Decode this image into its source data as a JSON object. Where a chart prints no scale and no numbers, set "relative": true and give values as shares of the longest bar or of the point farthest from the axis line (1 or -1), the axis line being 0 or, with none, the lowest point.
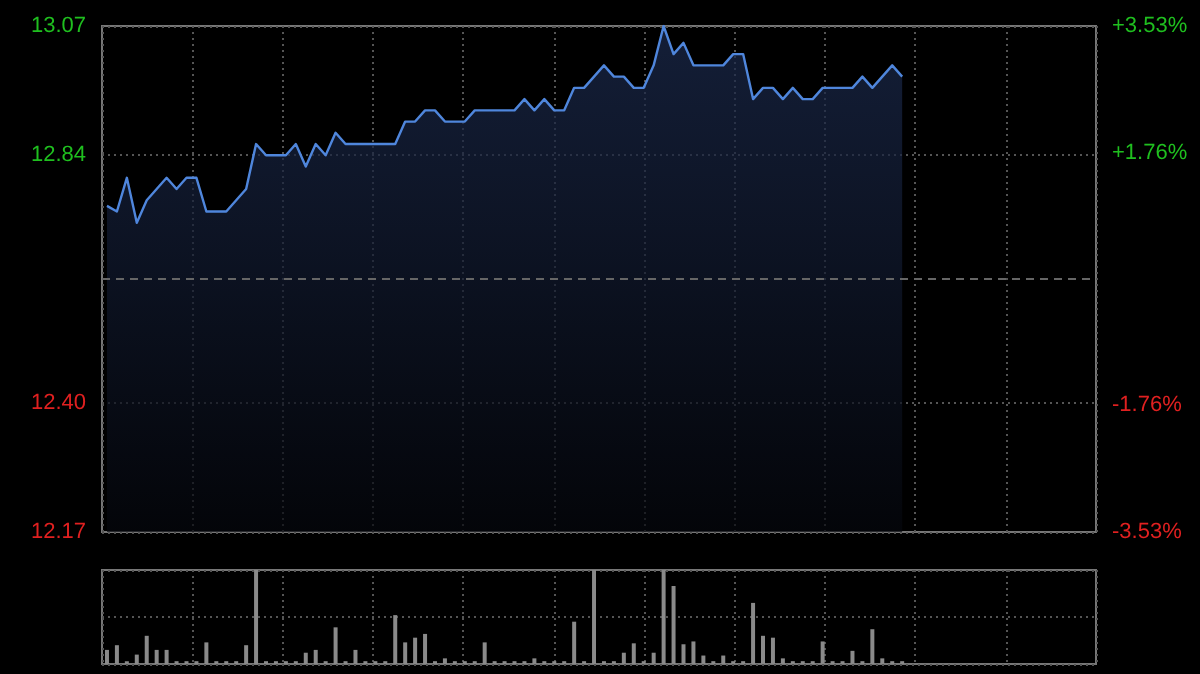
{
  "chart_data": [
    {
      "type": "area",
      "categories": [
        null,
        null,
        null,
        null,
        null,
        null,
        null,
        null,
        null,
        null,
        null,
        null,
        null,
        null,
        null,
        null,
        null,
        null,
        null,
        null,
        null,
        null,
        null,
        null,
        null,
        null,
        null,
        null,
        null,
        null,
        null,
        null,
        null,
        null,
        null,
        null,
        null,
        null,
        null,
        null,
        null,
        null,
        null,
        null,
        null,
        null,
        null,
        null,
        null,
        null,
        null,
        null,
        null,
        null,
        null,
        null,
        null,
        null,
        null,
        null,
        null,
        null,
        null,
        null,
        null,
        null,
        null,
        null,
        null,
        null,
        null,
        null,
        null,
        null,
        null,
        null,
        null,
        null,
        null,
        null,
        null
      ],
      "series": [
        {
          "color": "#4f86dc",
          "values": [
            12.75,
            12.74,
            12.8,
            12.72,
            12.76,
            12.78,
            12.8,
            12.78,
            12.8,
            12.8,
            12.74,
            12.74,
            12.74,
            12.76,
            12.78,
            12.86,
            12.84,
            12.84,
            12.84,
            12.86,
            12.82,
            12.86,
            12.84,
            12.88,
            12.86,
            12.86,
            12.86,
            12.86,
            12.86,
            12.86,
            12.9,
            12.9,
            12.92,
            12.92,
            12.9,
            12.9,
            12.9,
            12.92,
            12.92,
            12.92,
            12.92,
            12.92,
            12.94,
            12.92,
            12.94,
            12.92,
            12.92,
            12.96,
            12.96,
            12.98,
            13.0,
            12.98,
            12.98,
            12.96,
            12.96,
            13.0,
            13.07,
            13.02,
            13.04,
            13.0,
            13.0,
            13.0,
            13.0,
            13.02,
            13.02,
            12.94,
            12.96,
            12.96,
            12.94,
            12.96,
            12.94,
            12.94,
            12.96,
            12.96,
            12.96,
            12.96,
            12.98,
            12.96,
            12.98,
            13.0,
            12.98
          ]
        }
      ],
      "ylim": [
        12.17,
        13.07
      ],
      "yticks": [
        {
          "value": 12.17,
          "label": "12.17"
        },
        {
          "value": 12.4,
          "label": "12.40"
        },
        {
          "value": 12.84,
          "label": "12.84"
        },
        {
          "value": 13.07,
          "label": "13.07"
        }
      ],
      "y2lim": [
        -3.53,
        3.53
      ],
      "y2ticks": [
        {
          "value": -3.53,
          "label": "-3.53%"
        },
        {
          "value": -1.76,
          "label": "-1.76%"
        },
        {
          "value": 1.76,
          "label": "+1.76%"
        },
        {
          "value": 3.53,
          "label": "+3.53%"
        }
      ],
      "ref_lines": [
        {
          "axis": "y",
          "value": 12.62,
          "line_style": "dashed",
          "color": "#666666"
        }
      ],
      "tick_labels": "y",
      "grid": true
    },
    {
      "type": "bar",
      "relative": true,
      "categories": [
        null,
        null,
        null,
        null,
        null,
        null,
        null,
        null,
        null,
        null,
        null,
        null,
        null,
        null,
        null,
        null,
        null,
        null,
        null,
        null,
        null,
        null,
        null,
        null,
        null,
        null,
        null,
        null,
        null,
        null,
        null,
        null,
        null,
        null,
        null,
        null,
        null,
        null,
        null,
        null,
        null,
        null,
        null,
        null,
        null,
        null,
        null,
        null,
        null,
        null,
        null,
        null,
        null,
        null,
        null,
        null,
        null,
        null,
        null,
        null,
        null,
        null,
        null,
        null,
        null,
        null,
        null,
        null,
        null,
        null,
        null,
        null,
        null,
        null,
        null,
        null,
        null,
        null,
        null,
        null,
        null
      ],
      "series": [
        {
          "color": "#8a8a8a",
          "values": [
            0.15,
            0.2,
            0.03,
            0.1,
            0.3,
            0.15,
            0.15,
            0.03,
            0.03,
            0.03,
            0.23,
            0.03,
            0.03,
            0.03,
            0.2,
            1.0,
            0.03,
            0.03,
            0.03,
            0.03,
            0.12,
            0.15,
            0.03,
            0.39,
            0.03,
            0.15,
            0.03,
            0.03,
            0.03,
            0.52,
            0.23,
            0.28,
            0.32,
            0.03,
            0.06,
            0.03,
            0.03,
            0.03,
            0.23,
            0.03,
            0.03,
            0.03,
            0.03,
            0.06,
            0.03,
            0.03,
            0.03,
            0.45,
            0.03,
            1.0,
            0.03,
            0.03,
            0.12,
            0.22,
            0.03,
            0.12,
            1.0,
            0.83,
            0.21,
            0.24,
            0.09,
            0.03,
            0.09,
            0.03,
            0.03,
            0.65,
            0.3,
            0.28,
            0.06,
            0.03,
            0.03,
            0.03,
            0.24,
            0.03,
            0.03,
            0.14,
            0.03,
            0.37,
            0.06,
            0.03,
            0.03
          ]
        }
      ],
      "tick_labels": false,
      "grid": true
    }
  ]
}
